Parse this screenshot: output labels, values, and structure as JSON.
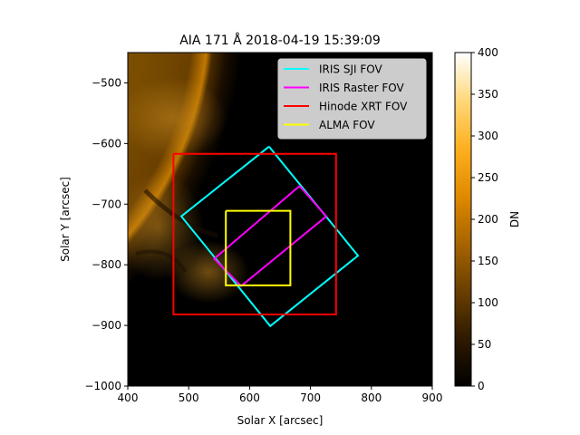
{
  "chart_data": {
    "type": "image",
    "title": "AIA 171 Å 2018-04-19 15:39:09",
    "xlabel": "Solar X [arcsec]",
    "ylabel": "Solar Y [arcsec]",
    "xlim": [
      400,
      900
    ],
    "ylim": [
      -1000,
      -450
    ],
    "xticks": [
      400,
      500,
      600,
      700,
      800,
      900
    ],
    "yticks": [
      -1000,
      -900,
      -800,
      -700,
      -600,
      -500
    ],
    "xtick_labels": [
      "400",
      "500",
      "600",
      "700",
      "800",
      "900"
    ],
    "ytick_labels": [
      "−1000",
      "−900",
      "−800",
      "−700",
      "−600",
      "−500"
    ],
    "grid": false,
    "legend_position": "top-right",
    "colorbar": {
      "label": "DN",
      "range": [
        0,
        400
      ],
      "ticks": [
        0,
        50,
        100,
        150,
        200,
        250,
        300,
        350,
        400
      ],
      "tick_labels": [
        "0",
        "50",
        "100",
        "150",
        "200",
        "250",
        "300",
        "350",
        "400"
      ],
      "colormap": [
        "#000000",
        "#2e1a00",
        "#6b3f00",
        "#a86500",
        "#e08a00",
        "#ffb020",
        "#ffd87a",
        "#ffffff"
      ]
    },
    "series": [
      {
        "name": "IRIS SJI FOV",
        "color": "#00ffff",
        "points": [
          [
            632,
            -605
          ],
          [
            778,
            -785
          ],
          [
            634,
            -901
          ],
          [
            488,
            -720
          ],
          [
            632,
            -605
          ]
        ]
      },
      {
        "name": "IRIS Raster FOV",
        "color": "#ff00ff",
        "points": [
          [
            682,
            -670
          ],
          [
            726,
            -720
          ],
          [
            586,
            -835
          ],
          [
            542,
            -790
          ],
          [
            682,
            -670
          ]
        ]
      },
      {
        "name": "Hinode XRT FOV",
        "color": "#ff0000",
        "points": [
          [
            475,
            -617
          ],
          [
            742,
            -617
          ],
          [
            742,
            -882
          ],
          [
            475,
            -882
          ],
          [
            475,
            -617
          ]
        ]
      },
      {
        "name": "ALMA FOV",
        "color": "#ffff00",
        "points": [
          [
            561,
            -711
          ],
          [
            667,
            -711
          ],
          [
            667,
            -834
          ],
          [
            561,
            -834
          ],
          [
            561,
            -711
          ]
        ]
      }
    ]
  }
}
